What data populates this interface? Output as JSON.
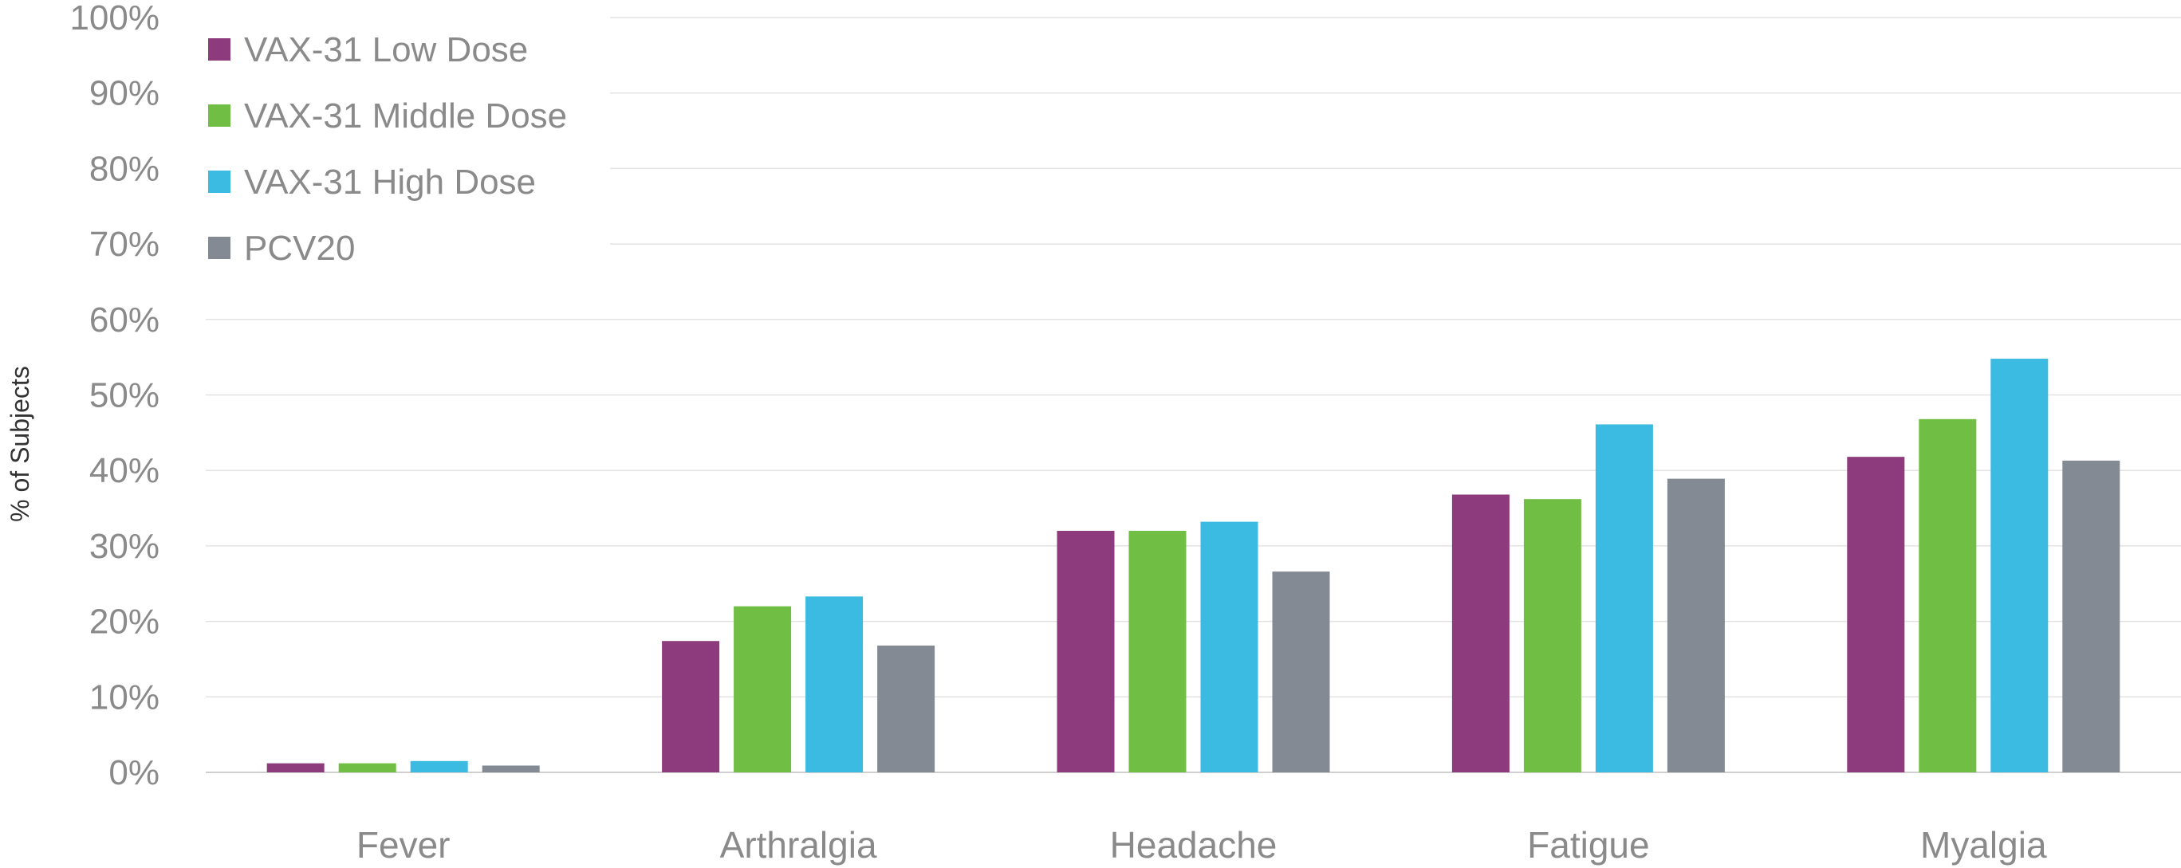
{
  "chart_data": {
    "type": "bar",
    "title": "",
    "xlabel": "",
    "ylabel": "% of Subjects",
    "ylim": [
      0,
      100
    ],
    "yticks": [
      "0%",
      "10%",
      "20%",
      "30%",
      "40%",
      "50%",
      "60%",
      "70%",
      "80%",
      "90%",
      "100%"
    ],
    "grid": true,
    "legend_position": "top-left",
    "categories": [
      "Fever",
      "Arthralgia",
      "Headache",
      "Fatigue",
      "Myalgia"
    ],
    "series": [
      {
        "name": "VAX-31 Low Dose",
        "color": "#8e3b7e",
        "values": [
          1.2,
          17.4,
          32.0,
          36.8,
          41.8
        ]
      },
      {
        "name": "VAX-31 Middle Dose",
        "color": "#70bf44",
        "values": [
          1.2,
          22.0,
          32.0,
          36.2,
          46.8
        ]
      },
      {
        "name": "VAX-31 High Dose",
        "color": "#3bbae2",
        "values": [
          1.5,
          23.3,
          33.2,
          46.1,
          54.8
        ]
      },
      {
        "name": "PCV20",
        "color": "#848a93",
        "values": [
          0.9,
          16.8,
          26.6,
          38.9,
          41.3
        ]
      }
    ]
  }
}
